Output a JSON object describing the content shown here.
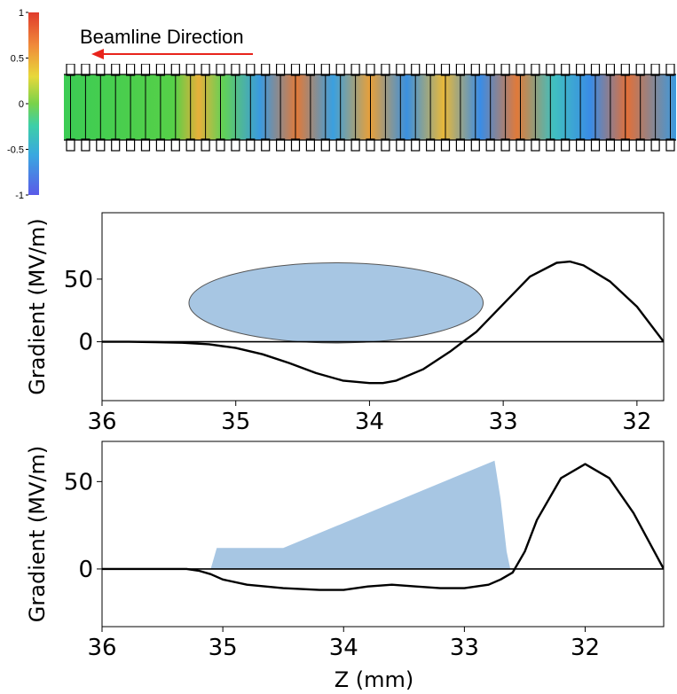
{
  "colors": {
    "wake_fill": "#a7c6e3",
    "curve": "#000000",
    "arrow": "#e8241c",
    "structure": "#000000"
  },
  "colorbar": {
    "ticks": [
      {
        "value": 1,
        "label": "1"
      },
      {
        "value": 0.5,
        "label": "0.5"
      },
      {
        "value": 0,
        "label": "0"
      },
      {
        "value": -0.5,
        "label": "-0.5"
      },
      {
        "value": -1,
        "label": "-1"
      }
    ]
  },
  "field_map": {
    "annotation": "Beamline Direction"
  },
  "chart_data": [
    {
      "type": "line",
      "ylabel": "Gradient (MV/m)",
      "xlim": [
        36,
        31.8
      ],
      "ylim": [
        -47,
        103
      ],
      "xticks": [
        {
          "value": 36,
          "label": "36"
        },
        {
          "value": 35,
          "label": "35"
        },
        {
          "value": 34,
          "label": "34"
        },
        {
          "value": 33,
          "label": "33"
        },
        {
          "value": 32,
          "label": "32"
        }
      ],
      "yticks": [
        {
          "value": 50,
          "label": "50"
        },
        {
          "value": 0,
          "label": "0"
        }
      ],
      "series": [
        {
          "x": [
            36.0,
            35.8,
            35.6,
            35.4,
            35.2,
            35.0,
            34.8,
            34.6,
            34.4,
            34.2,
            34.0,
            33.9,
            33.8,
            33.6,
            33.4,
            33.3,
            33.2,
            33.0,
            32.8,
            32.6,
            32.5,
            32.4,
            32.2,
            32.0,
            31.8
          ],
          "y": [
            0,
            0,
            -0.3,
            -0.8,
            -2,
            -5,
            -10,
            -17,
            -25,
            -31,
            -33,
            -33,
            -31,
            -22,
            -8,
            0,
            8,
            30,
            52,
            63,
            64,
            61,
            48,
            28,
            0
          ]
        }
      ],
      "shape": {
        "type": "ellipse",
        "center": [
          34.25,
          31
        ],
        "x_radius": 1.1,
        "y_radius": 32
      }
    },
    {
      "type": "line",
      "xlabel": "Z (mm)",
      "ylabel": "Gradient (MV/m)",
      "xlim": [
        36,
        31.35
      ],
      "ylim": [
        -33,
        73
      ],
      "xticks": [
        {
          "value": 36,
          "label": "36"
        },
        {
          "value": 35,
          "label": "35"
        },
        {
          "value": 34,
          "label": "34"
        },
        {
          "value": 33,
          "label": "33"
        },
        {
          "value": 32,
          "label": "32"
        }
      ],
      "yticks": [
        {
          "value": 50,
          "label": "50"
        },
        {
          "value": 0,
          "label": "0"
        }
      ],
      "series": [
        {
          "x": [
            36.0,
            35.5,
            35.3,
            35.2,
            35.1,
            35.0,
            34.8,
            34.5,
            34.2,
            34.0,
            33.8,
            33.6,
            33.4,
            33.2,
            33.0,
            32.8,
            32.7,
            32.6,
            32.5,
            32.4,
            32.2,
            32.0,
            31.8,
            31.6,
            31.35
          ],
          "y": [
            0,
            0,
            0,
            -1,
            -3,
            -6,
            -9,
            -11,
            -12,
            -12,
            -10,
            -9,
            -10,
            -11,
            -11,
            -9,
            -6,
            -2,
            10,
            28,
            52,
            60,
            52,
            32,
            0
          ]
        }
      ],
      "wake_profile": {
        "x": [
          35.1,
          35.05,
          34.5,
          32.75,
          32.7,
          32.65,
          32.62
        ],
        "y": [
          0,
          12,
          12,
          62,
          40,
          10,
          0
        ]
      }
    }
  ]
}
